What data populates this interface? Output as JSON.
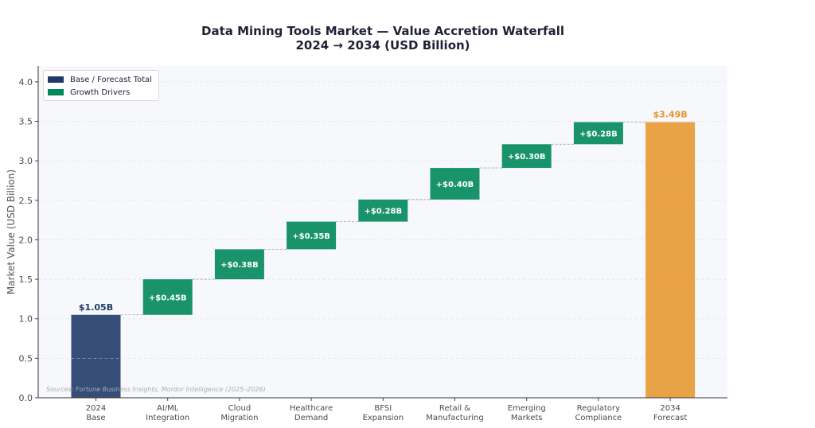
{
  "chart_data": {
    "type": "bar",
    "subtype": "waterfall",
    "title": "Data Mining Tools Market — Value Accretion Waterfall",
    "subtitle": "2024 → 2034 (USD Billion)",
    "ylabel": "Market Value (USD Billion)",
    "ylim": [
      0,
      4.2
    ],
    "yticks": [
      "0.0",
      "0.5",
      "1.0",
      "1.5",
      "2.0",
      "2.5",
      "3.0",
      "3.5",
      "4.0"
    ],
    "ytick_values": [
      0,
      0.5,
      1.0,
      1.5,
      2.0,
      2.5,
      3.0,
      3.5,
      4.0
    ],
    "grid": true,
    "legend_position": "top-left",
    "legend": [
      {
        "label": "Base / Forecast Total",
        "color": "#1f3a68"
      },
      {
        "label": "Growth Drivers",
        "color": "#00875a"
      }
    ],
    "categories": [
      [
        "2024",
        "Base"
      ],
      [
        "AI/ML",
        "Integration"
      ],
      [
        "Cloud",
        "Migration"
      ],
      [
        "Healthcare",
        "Demand"
      ],
      [
        "BFSI",
        "Expansion"
      ],
      [
        "Retail &",
        "Manufacturing"
      ],
      [
        "Emerging",
        "Markets"
      ],
      [
        "Regulatory",
        "Compliance"
      ],
      [
        "2034",
        "Forecast"
      ]
    ],
    "bars": [
      {
        "kind": "total",
        "value": 1.05,
        "label": "$1.05B"
      },
      {
        "kind": "delta",
        "value": 0.45,
        "label": "+$0.45B"
      },
      {
        "kind": "delta",
        "value": 0.38,
        "label": "+$0.38B"
      },
      {
        "kind": "delta",
        "value": 0.35,
        "label": "+$0.35B"
      },
      {
        "kind": "delta",
        "value": 0.28,
        "label": "+$0.28B"
      },
      {
        "kind": "delta",
        "value": 0.4,
        "label": "+$0.40B"
      },
      {
        "kind": "delta",
        "value": 0.3,
        "label": "+$0.30B"
      },
      {
        "kind": "delta",
        "value": 0.28,
        "label": "+$0.28B"
      },
      {
        "kind": "forecast",
        "value": 3.49,
        "label": "$3.49B"
      }
    ],
    "colors": {
      "base": "#1f3a68",
      "delta": "#00875a",
      "forecast": "#e8952e",
      "base_label": "#1f3a68",
      "forecast_label": "#e8952e"
    },
    "source": "Sources: Fortune Business Insights, Mordor Intelligence (2025–2026)"
  }
}
